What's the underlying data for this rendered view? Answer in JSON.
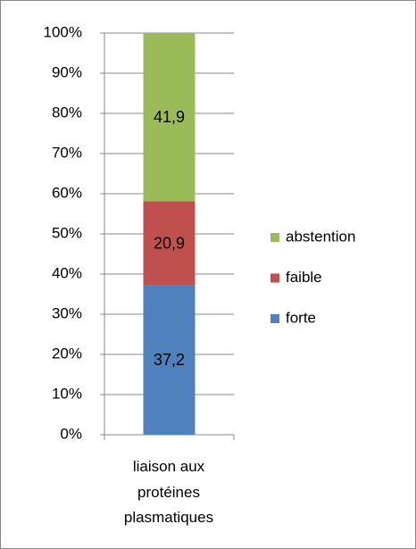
{
  "chart_data": {
    "type": "stacked_bar_100",
    "categories": [
      "liaison aux protéines plasmatiques"
    ],
    "series": [
      {
        "name": "forte",
        "color": "#4f81bd",
        "values": [
          37.2
        ],
        "value_labels": [
          "37,2"
        ]
      },
      {
        "name": "faible",
        "color": "#c0504d",
        "values": [
          20.9
        ],
        "value_labels": [
          "20,9"
        ]
      },
      {
        "name": "abstention",
        "color": "#9bbb59",
        "values": [
          41.9
        ],
        "value_labels": [
          "41,9"
        ]
      }
    ],
    "ylim": [
      0,
      100
    ],
    "yticks": [
      {
        "value": 0,
        "label": "0%"
      },
      {
        "value": 10,
        "label": "10%"
      },
      {
        "value": 20,
        "label": "20%"
      },
      {
        "value": 30,
        "label": "30%"
      },
      {
        "value": 40,
        "label": "40%"
      },
      {
        "value": 50,
        "label": "50%"
      },
      {
        "value": 60,
        "label": "60%"
      },
      {
        "value": 70,
        "label": "70%"
      },
      {
        "value": 80,
        "label": "80%"
      },
      {
        "value": 90,
        "label": "90%"
      },
      {
        "value": 100,
        "label": "100%"
      }
    ],
    "grid": true,
    "legend": "right"
  }
}
